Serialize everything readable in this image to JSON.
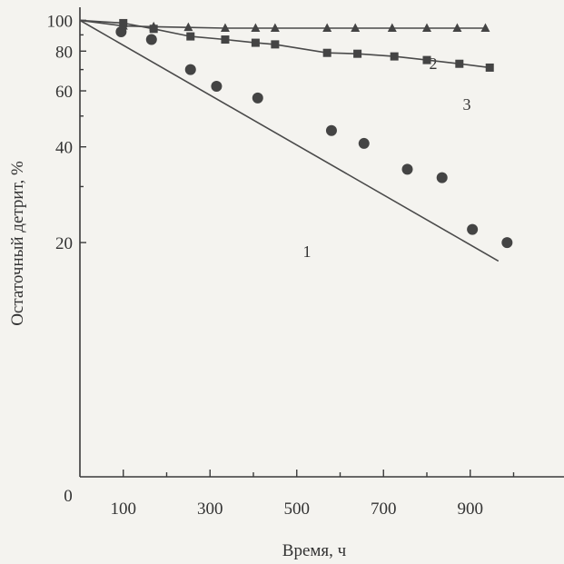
{
  "chart_data": {
    "type": "line",
    "title": "",
    "xlabel": "Время, ч",
    "ylabel": "Остаточный детрит, %",
    "xlim": [
      0,
      1000
    ],
    "ylim": [
      10,
      100
    ],
    "y_scale": "log",
    "grid": false,
    "legend": "none",
    "x_ticks": [
      100,
      300,
      500,
      700,
      900
    ],
    "x_tick_labels": [
      "100",
      "300",
      "500",
      "700",
      "900"
    ],
    "y_ticks": [
      20,
      40,
      60,
      80,
      100
    ],
    "y_tick_labels": [
      "20",
      "40",
      "60",
      "80",
      "100"
    ],
    "origin_label": "0",
    "series": [
      {
        "label": "1",
        "marker": "circle",
        "points": [
          {
            "x": 95,
            "y": 92
          },
          {
            "x": 165,
            "y": 87
          },
          {
            "x": 255,
            "y": 70
          },
          {
            "x": 315,
            "y": 62
          },
          {
            "x": 410,
            "y": 57
          },
          {
            "x": 580,
            "y": 45
          },
          {
            "x": 655,
            "y": 41
          },
          {
            "x": 755,
            "y": 34
          },
          {
            "x": 835,
            "y": 32
          },
          {
            "x": 905,
            "y": 22
          },
          {
            "x": 985,
            "y": 20
          }
        ],
        "fit_line": [
          {
            "x": 0,
            "y": 100
          },
          {
            "x": 965,
            "y": 17.5
          }
        ]
      },
      {
        "label": "2",
        "marker": "triangle",
        "points": [
          {
            "x": 0,
            "y": 100
          },
          {
            "x": 100,
            "y": 96
          },
          {
            "x": 170,
            "y": 95.5
          },
          {
            "x": 250,
            "y": 95
          },
          {
            "x": 335,
            "y": 94.5
          },
          {
            "x": 405,
            "y": 94.5
          },
          {
            "x": 450,
            "y": 94.5
          },
          {
            "x": 570,
            "y": 94.5
          },
          {
            "x": 635,
            "y": 94.5
          },
          {
            "x": 720,
            "y": 94.5
          },
          {
            "x": 800,
            "y": 94.5
          },
          {
            "x": 870,
            "y": 94.5
          },
          {
            "x": 935,
            "y": 94.5
          }
        ]
      },
      {
        "label": "3",
        "marker": "square",
        "points": [
          {
            "x": 0,
            "y": 100
          },
          {
            "x": 100,
            "y": 98
          },
          {
            "x": 170,
            "y": 94
          },
          {
            "x": 255,
            "y": 89
          },
          {
            "x": 335,
            "y": 87
          },
          {
            "x": 405,
            "y": 85
          },
          {
            "x": 450,
            "y": 84
          },
          {
            "x": 570,
            "y": 79
          },
          {
            "x": 640,
            "y": 78.5
          },
          {
            "x": 725,
            "y": 77
          },
          {
            "x": 800,
            "y": 75
          },
          {
            "x": 875,
            "y": 73
          },
          {
            "x": 945,
            "y": 71
          }
        ]
      }
    ]
  }
}
